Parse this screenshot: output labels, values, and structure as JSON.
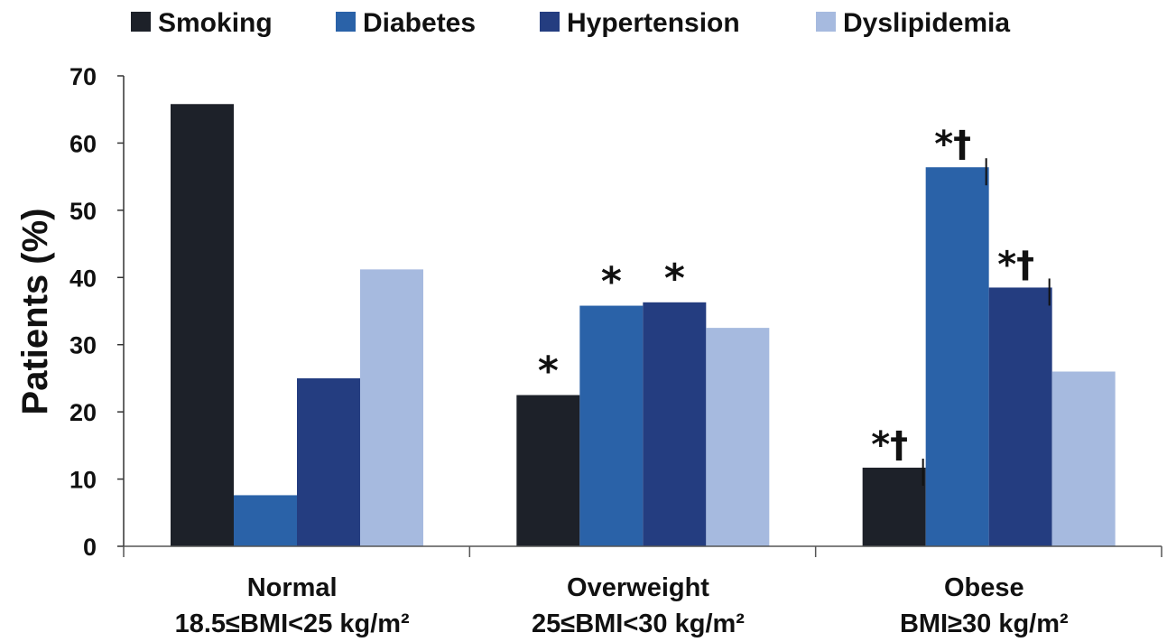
{
  "chart_data": {
    "type": "bar",
    "ylabel": "Patients (%)",
    "xlabel": "",
    "ylim": [
      0,
      70
    ],
    "yticks": [
      0,
      10,
      20,
      30,
      40,
      50,
      60,
      70
    ],
    "grid": false,
    "legend_position": "top",
    "categories": [
      {
        "line1": "Normal",
        "line2": "18.5≤BMI<25 kg/m²"
      },
      {
        "line1": "Overweight",
        "line2": "25≤BMI<30 kg/m²"
      },
      {
        "line1": "Obese",
        "line2": "BMI≥30 kg/m²"
      }
    ],
    "series": [
      {
        "name": "Smoking",
        "color": "#1d2129",
        "values": [
          65.8,
          22.5,
          11.7
        ]
      },
      {
        "name": "Diabetes",
        "color": "#2a62a8",
        "values": [
          7.6,
          35.8,
          56.4
        ]
      },
      {
        "name": "Hypertension",
        "color": "#243d80",
        "values": [
          25.0,
          36.3,
          38.5
        ]
      },
      {
        "name": "Dyslipidemia",
        "color": "#a6badf",
        "values": [
          41.2,
          32.5,
          26.0
        ]
      }
    ],
    "annotations": [
      {
        "category": 1,
        "series": 0,
        "text": "*"
      },
      {
        "category": 1,
        "series": 1,
        "text": "*"
      },
      {
        "category": 1,
        "series": 2,
        "text": "*"
      },
      {
        "category": 2,
        "series": 0,
        "text": "*†"
      },
      {
        "category": 2,
        "series": 1,
        "text": "*†"
      },
      {
        "category": 2,
        "series": 2,
        "text": "*†"
      }
    ]
  }
}
